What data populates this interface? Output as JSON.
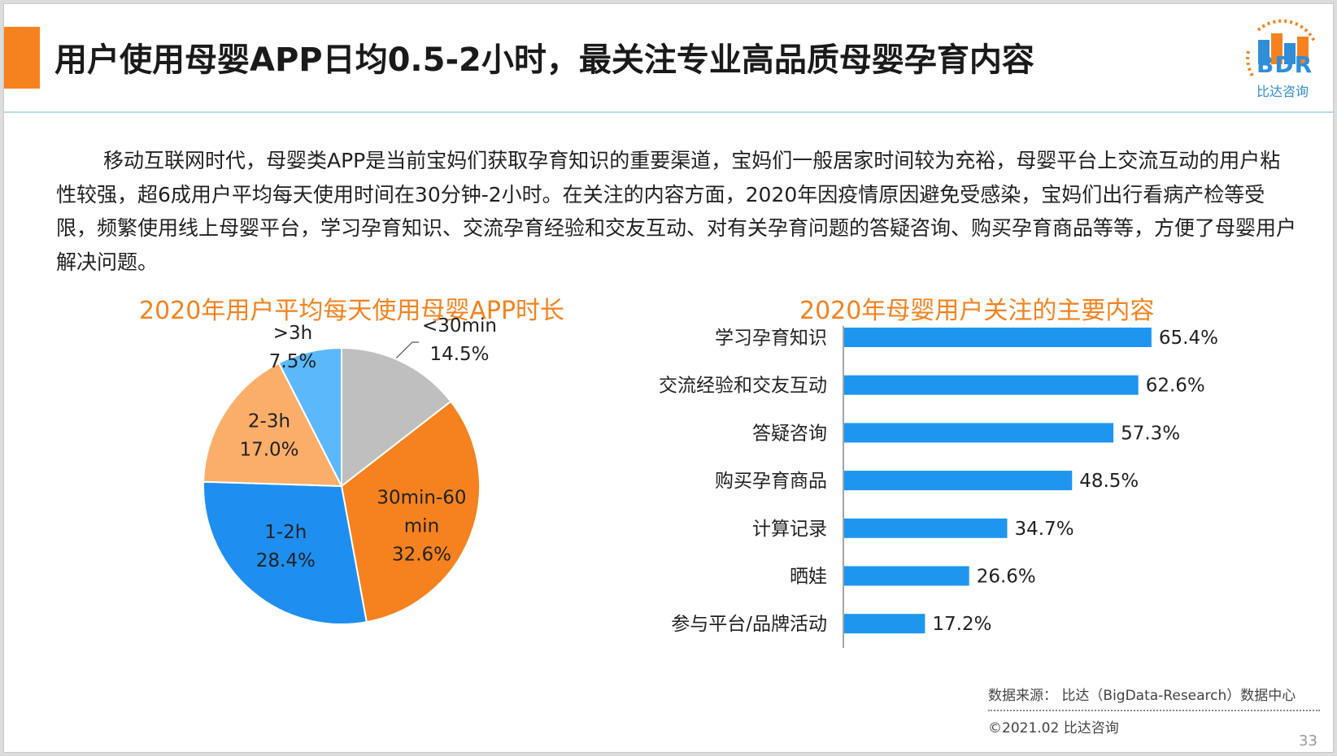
{
  "header": {
    "title": "用户使用母婴APP日均0.5-2小时，最关注专业高品质母婴孕育内容",
    "logo_text": "BDR",
    "logo_sub": "比达咨询"
  },
  "intro_text": "移动互联网时代，母婴类APP是当前宝妈们获取孕育知识的重要渠道，宝妈们一般居家时间较为充裕，母婴平台上交流互动的用户粘性较强，超6成用户平均每天使用时间在30分钟-2小时。在关注的内容方面，2020年因疫情原因避免受感染，宝妈们出行看病产检等受限，频繁使用线上母婴平台，学习孕育知识、交流孕育经验和交友互动、对有关孕育问题的答疑咨询、购买孕育商品等等，方便了母婴用户解决问题。",
  "footer": {
    "source": "数据来源： 比达（BigData-Research）数据中心",
    "copyright": "©2021.02 比达咨询",
    "page_number": "33"
  },
  "colors": {
    "accent": "#f5821f",
    "bar": "#1e96f0",
    "title_rule": "#b7dcec"
  },
  "chart_data": [
    {
      "type": "pie",
      "title": "2020年用户平均每天使用母婴APP时长",
      "slices": [
        {
          "label": "<30min",
          "value": 14.5,
          "display": "14.5%",
          "color": "#bfbfbf"
        },
        {
          "label": "30min-60 min",
          "value": 32.6,
          "display": "32.6%",
          "color": "#f5821f"
        },
        {
          "label": "1-2h",
          "value": 28.4,
          "display": "28.4%",
          "color": "#1e8ff0"
        },
        {
          "label": "2-3h",
          "value": 17.0,
          "display": "17.0%",
          "color": "#fbae6a"
        },
        {
          "label": ">3h",
          "value": 7.5,
          "display": "7.5%",
          "color": "#5bb8fb"
        }
      ]
    },
    {
      "type": "bar",
      "orientation": "horizontal",
      "title": "2020年母婴用户关注的主要内容",
      "categories": [
        "学习孕育知识",
        "交流经验和交友互动",
        "答疑咨询",
        "购买孕育商品",
        "计算记录",
        "晒娃",
        "参与平台/品牌活动"
      ],
      "values": [
        65.4,
        62.6,
        57.3,
        48.5,
        34.7,
        26.6,
        17.2
      ],
      "labels": [
        "65.4%",
        "62.6%",
        "57.3%",
        "48.5%",
        "34.7%",
        "26.6%",
        "17.2%"
      ],
      "xlim": [
        0,
        100
      ]
    }
  ]
}
